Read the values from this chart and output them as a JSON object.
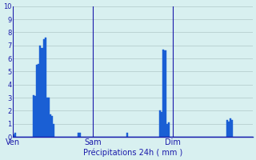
{
  "title": "Précipitations 24h ( mm )",
  "background_color": "#d8f0f0",
  "grid_color": "#b0c8c8",
  "bar_color": "#1a5fd4",
  "bar_edge_color": "#0033aa",
  "ylim": [
    0,
    10
  ],
  "yticks": [
    0,
    1,
    2,
    3,
    4,
    5,
    6,
    7,
    8,
    9,
    10
  ],
  "day_labels": [
    "Ven",
    "Sam",
    "Dim"
  ],
  "day_positions": [
    0,
    48,
    96
  ],
  "num_bars": 144,
  "values": [
    0.2,
    0.3,
    0.0,
    0.0,
    0.0,
    0.0,
    0.0,
    0.0,
    0.0,
    0.0,
    0.0,
    0.0,
    3.2,
    3.1,
    5.5,
    5.6,
    7.0,
    6.8,
    7.5,
    7.6,
    3.0,
    3.0,
    1.7,
    1.6,
    1.0,
    0.0,
    0.0,
    0.0,
    0.0,
    0.0,
    0.0,
    0.0,
    0.0,
    0.0,
    0.0,
    0.0,
    0.0,
    0.0,
    0.0,
    0.3,
    0.3,
    0.0,
    0.0,
    0.0,
    0.0,
    0.0,
    0.0,
    0.0,
    0.0,
    0.0,
    0.0,
    0.0,
    0.0,
    0.0,
    0.0,
    0.0,
    0.0,
    0.0,
    0.0,
    0.0,
    0.0,
    0.0,
    0.0,
    0.0,
    0.0,
    0.0,
    0.0,
    0.0,
    0.3,
    0.0,
    0.0,
    0.0,
    0.0,
    0.0,
    0.0,
    0.0,
    0.0,
    0.0,
    0.0,
    0.0,
    0.0,
    0.0,
    0.0,
    0.0,
    0.0,
    0.0,
    0.0,
    0.0,
    2.0,
    1.9,
    6.7,
    6.6,
    1.0,
    1.1,
    0.0,
    0.0,
    0.0,
    0.0,
    0.0,
    0.0,
    0.0,
    0.0,
    0.0,
    0.0,
    0.0,
    0.0,
    0.0,
    0.0,
    0.0,
    0.0,
    0.0,
    0.0,
    0.0,
    0.0,
    0.0,
    0.0,
    0.0,
    0.0,
    0.0,
    0.0,
    0.0,
    0.0,
    0.0,
    0.0,
    0.0,
    0.0,
    0.0,
    0.0,
    1.3,
    1.2,
    1.4,
    1.3,
    0.0,
    0.0,
    0.0,
    0.0,
    0.0,
    0.0,
    0.0,
    0.0,
    0.0,
    0.0,
    0.0,
    0.0
  ]
}
